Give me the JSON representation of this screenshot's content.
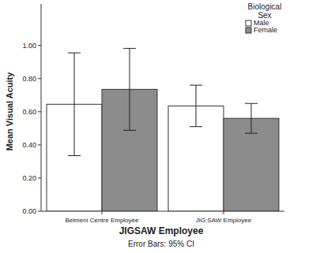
{
  "chart_data": {
    "type": "bar",
    "x_label": "JIGSAW Employee",
    "y_label": "Mean Visual Acuity",
    "categories": [
      "Belmeni Centre Employee",
      "JIG:SAW Employee"
    ],
    "series": [
      {
        "name": "Male",
        "color": "#ffffff",
        "values": [
          0.645,
          0.635
        ],
        "errors": [
          0.31,
          0.125
        ]
      },
      {
        "name": "Female",
        "color": "#8c8c8c",
        "values": [
          0.735,
          0.56
        ],
        "errors": [
          0.247,
          0.09
        ]
      }
    ],
    "legend_title": "Biological Sex",
    "legend": "top-right",
    "annotations": [
      "Error Bars: 95% CI"
    ],
    "ylim": [
      0,
      1.25
    ],
    "yticks": [
      {
        "value": 0,
        "label": "0.00"
      },
      {
        "value": 0.2,
        "label": "0.20"
      },
      {
        "value": 0.4,
        "label": "0.40"
      },
      {
        "value": 0.6,
        "label": "0.60"
      },
      {
        "value": 0.8,
        "label": "0.80"
      },
      {
        "value": 1,
        "label": "1.00"
      }
    ],
    "grid": false
  }
}
